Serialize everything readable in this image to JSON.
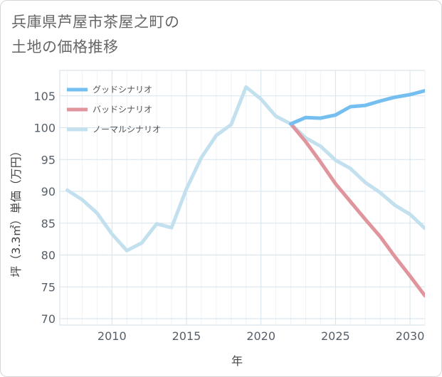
{
  "chart_data": {
    "type": "line",
    "title": "兵庫県芦屋市茶屋之町の\n土地の価格推移",
    "xlabel": "年",
    "ylabel": "坪（3.3㎡）単価（万円）",
    "xlim": [
      2006.5,
      2031
    ],
    "ylim": [
      69,
      109
    ],
    "x_ticks": [
      2010,
      2015,
      2020,
      2025,
      2030
    ],
    "y_ticks": [
      70,
      75,
      80,
      85,
      90,
      95,
      100,
      105
    ],
    "grid": true,
    "legend_position": "top-left",
    "series": [
      {
        "name": "グッドシナリオ",
        "color": "#74bff0",
        "x": [
          2022,
          2023,
          2024,
          2025,
          2026,
          2027,
          2028,
          2029,
          2030,
          2031
        ],
        "y": [
          100.6,
          101.6,
          101.5,
          102.0,
          103.3,
          103.5,
          104.2,
          104.8,
          105.2,
          105.8
        ]
      },
      {
        "name": "バッドシナリオ",
        "color": "#e0949c",
        "x": [
          2022,
          2023,
          2024,
          2025,
          2026,
          2027,
          2028,
          2029,
          2030,
          2031
        ],
        "y": [
          100.6,
          97.8,
          94.6,
          91.2,
          88.4,
          85.6,
          82.9,
          79.7,
          76.7,
          73.6
        ]
      },
      {
        "name": "ノーマルシナリオ",
        "color": "#c3e0ef",
        "x": [
          2007,
          2008,
          2009,
          2010,
          2011,
          2012,
          2013,
          2014,
          2015,
          2016,
          2017,
          2018,
          2019,
          2020,
          2021,
          2022,
          2023,
          2024,
          2025,
          2026,
          2027,
          2028,
          2029,
          2030,
          2031
        ],
        "y": [
          90.2,
          88.7,
          86.6,
          83.3,
          80.7,
          81.9,
          84.9,
          84.3,
          90.4,
          95.3,
          98.8,
          100.5,
          106.4,
          104.5,
          101.8,
          100.6,
          98.4,
          97.1,
          94.9,
          93.6,
          91.4,
          89.8,
          87.8,
          86.4,
          84.2
        ]
      }
    ]
  }
}
